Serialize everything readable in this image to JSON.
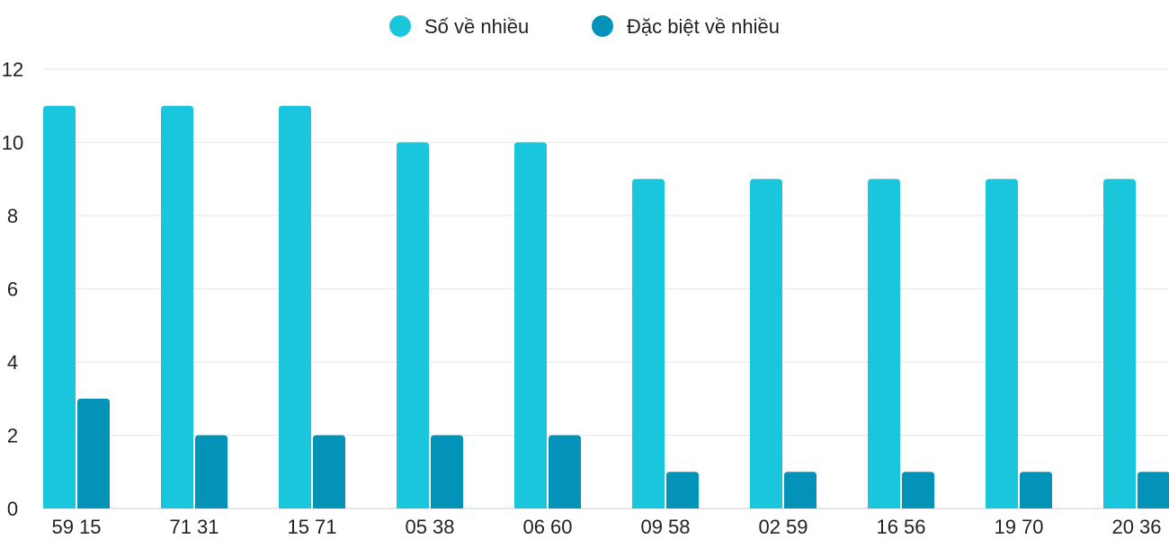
{
  "chart_data": {
    "type": "bar",
    "categories": [
      "59 15",
      "71 31",
      "15 71",
      "05 38",
      "06 60",
      "09 58",
      "02 59",
      "16 56",
      "19 70",
      "20 36"
    ],
    "series": [
      {
        "name": "Số về nhiều",
        "color": "#1ac6dc",
        "values": [
          11,
          11,
          11,
          10,
          10,
          9,
          9,
          9,
          9,
          9
        ]
      },
      {
        "name": "Đặc biệt về nhiều",
        "color": "#0393b8",
        "values": [
          3,
          2,
          2,
          2,
          2,
          1,
          1,
          1,
          1,
          1
        ]
      }
    ],
    "ylim": [
      0,
      12
    ],
    "yticks": [
      0,
      2,
      4,
      6,
      8,
      10,
      12
    ],
    "grid": true,
    "legend": "top-center"
  }
}
